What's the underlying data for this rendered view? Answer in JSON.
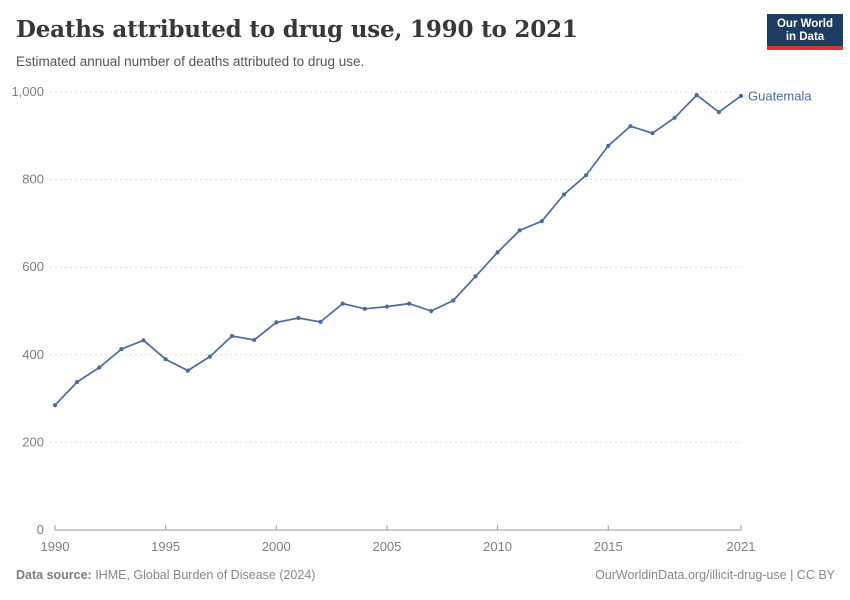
{
  "header": {
    "title": "Deaths attributed to drug use, 1990 to 2021",
    "subtitle": "Estimated annual number of deaths attributed to drug use.",
    "logo": {
      "line1": "Our World",
      "line2": "in Data",
      "bg_color": "#1d3d63",
      "accent_color": "#d2353c"
    }
  },
  "chart_data": {
    "type": "line",
    "title": "Deaths attributed to drug use, 1990 to 2021",
    "xlabel": "",
    "ylabel": "",
    "xlim": [
      1990,
      2021
    ],
    "ylim": [
      0,
      1000
    ],
    "grid": "horizontal-dashed",
    "legend_position": "end-of-line-label",
    "xticks": [
      1990,
      1995,
      2000,
      2005,
      2010,
      2015,
      2021
    ],
    "xtick_labels": [
      "1990",
      "1995",
      "2000",
      "2005",
      "2010",
      "2015",
      "2021"
    ],
    "yticks": [
      0,
      200,
      400,
      600,
      800,
      1000
    ],
    "ytick_labels": [
      "0",
      "200",
      "400",
      "600",
      "800",
      "1,000"
    ],
    "x": [
      1990,
      1991,
      1992,
      1993,
      1994,
      1995,
      1996,
      1997,
      1998,
      1999,
      2000,
      2001,
      2002,
      2003,
      2004,
      2005,
      2006,
      2007,
      2008,
      2009,
      2010,
      2011,
      2012,
      2013,
      2014,
      2015,
      2016,
      2017,
      2018,
      2019,
      2020,
      2021
    ],
    "series": [
      {
        "name": "Guatemala",
        "color": "#4c6a9c",
        "values": [
          285,
          338,
          371,
          413,
          433,
          390,
          364,
          396,
          443,
          434,
          474,
          484,
          475,
          517,
          505,
          510,
          517,
          500,
          524,
          579,
          634,
          684,
          705,
          766,
          810,
          877,
          922,
          906,
          941,
          993,
          954,
          991
        ]
      }
    ]
  },
  "styles": {
    "gridline_color": "#dcdcdc",
    "axis_color": "#9a9a9a",
    "tick_label_color": "#7f7f7f"
  },
  "footer": {
    "datasource_label": "Data source:",
    "datasource_value": " IHME, Global Burden of Disease (2024)",
    "link": "OurWorldinData.org/illicit-drug-use | CC BY"
  }
}
